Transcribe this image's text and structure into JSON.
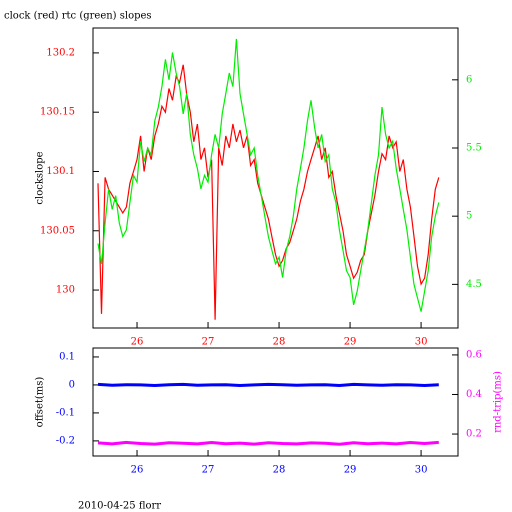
{
  "chart_data": [
    {
      "type": "line",
      "title": "clock (red) rtc (green) slopes",
      "ylabel": "clockslope",
      "x": [
        25.45,
        25.5,
        25.55,
        25.6,
        25.65,
        25.7,
        25.75,
        25.8,
        25.85,
        25.9,
        25.95,
        26,
        26.05,
        26.1,
        26.15,
        26.2,
        26.25,
        26.3,
        26.35,
        26.4,
        26.45,
        26.5,
        26.55,
        26.6,
        26.65,
        26.7,
        26.75,
        26.8,
        26.85,
        26.9,
        26.95,
        27,
        27.05,
        27.1,
        27.15,
        27.2,
        27.25,
        27.3,
        27.35,
        27.4,
        27.45,
        27.5,
        27.55,
        27.6,
        27.65,
        27.7,
        27.75,
        27.8,
        27.85,
        27.9,
        27.95,
        28,
        28.05,
        28.1,
        28.15,
        28.2,
        28.25,
        28.3,
        28.35,
        28.4,
        28.45,
        28.5,
        28.55,
        28.6,
        28.65,
        28.7,
        28.75,
        28.8,
        28.85,
        28.9,
        28.95,
        29,
        29.05,
        29.1,
        29.15,
        29.2,
        29.25,
        29.3,
        29.35,
        29.4,
        29.45,
        29.5,
        29.55,
        29.6,
        29.65,
        29.7,
        29.75,
        29.8,
        29.85,
        29.9,
        29.95,
        30,
        30.05,
        30.1,
        30.15,
        30.2,
        30.25
      ],
      "xlim": [
        25.38,
        30.52
      ],
      "xticks": [
        26,
        27,
        28,
        29,
        30
      ],
      "ylim": [
        129.968,
        130.221
      ],
      "yticks": [
        130,
        130.05,
        130.1,
        130.15,
        130.2
      ],
      "y2lim": [
        4.18,
        6.38
      ],
      "y2ticks": [
        4.5,
        5,
        5.5,
        6
      ],
      "series": [
        {
          "name": "clock",
          "color": "#ff0000",
          "axis": "y",
          "values": [
            130.09,
            129.98,
            130.095,
            130.085,
            130.08,
            130.075,
            130.07,
            130.065,
            130.07,
            130.09,
            130.1,
            130.11,
            130.13,
            130.1,
            130.12,
            130.11,
            130.13,
            130.14,
            130.155,
            130.15,
            130.17,
            130.16,
            130.18,
            130.175,
            130.19,
            130.165,
            130.15,
            130.125,
            130.14,
            130.11,
            130.12,
            130.095,
            130.11,
            129.975,
            130.12,
            130.105,
            130.13,
            130.12,
            130.14,
            130.125,
            130.135,
            130.12,
            130.13,
            130.105,
            130.11,
            130.09,
            130.08,
            130.07,
            130.06,
            130.045,
            130.03,
            130.02,
            130.025,
            130.035,
            130.04,
            130.05,
            130.06,
            130.075,
            130.085,
            130.1,
            130.11,
            130.12,
            130.13,
            130.11,
            130.12,
            130.095,
            130.1,
            130.08,
            130.065,
            130.05,
            130.03,
            130.02,
            130.01,
            130.015,
            130.025,
            130.03,
            130.05,
            130.065,
            130.08,
            130.1,
            130.115,
            130.11,
            130.13,
            130.12,
            130.125,
            130.1,
            130.11,
            130.085,
            130.07,
            130.045,
            130.02,
            130.005,
            130.01,
            130.03,
            130.06,
            130.085,
            130.095
          ]
        },
        {
          "name": "rtc",
          "color": "#00ee00",
          "axis": "y2",
          "values": [
            4.8,
            4.65,
            4.95,
            5.2,
            5.05,
            5.15,
            4.95,
            4.85,
            4.9,
            5.1,
            5.3,
            5.25,
            5.55,
            5.4,
            5.5,
            5.45,
            5.7,
            5.8,
            5.95,
            6.15,
            6,
            6.2,
            6.05,
            5.95,
            5.75,
            5.9,
            5.6,
            5.45,
            5.35,
            5.2,
            5.3,
            5.25,
            5.45,
            5.6,
            5.5,
            5.75,
            5.9,
            6.05,
            5.95,
            6.3,
            5.9,
            5.75,
            5.6,
            5.45,
            5.5,
            5.3,
            5.15,
            5,
            4.85,
            4.75,
            4.65,
            4.7,
            4.55,
            4.75,
            4.85,
            5,
            5.2,
            5.35,
            5.5,
            5.7,
            5.85,
            5.65,
            5.5,
            5.6,
            5.4,
            5.45,
            5.2,
            5.1,
            4.9,
            4.75,
            4.6,
            4.55,
            4.35,
            4.45,
            4.6,
            4.75,
            4.9,
            5.1,
            5.3,
            5.45,
            5.8,
            5.6,
            5.5,
            5.55,
            5.35,
            5.2,
            5.05,
            4.9,
            4.7,
            4.5,
            4.4,
            4.3,
            4.45,
            4.6,
            4.85,
            5,
            5.1
          ]
        }
      ]
    },
    {
      "type": "line",
      "ylabel": "offset(ms)",
      "y2label": "rnd-trip(ms)",
      "x": [
        25.45,
        25.65,
        25.85,
        26.05,
        26.25,
        26.45,
        26.65,
        26.85,
        27.05,
        27.25,
        27.45,
        27.65,
        27.85,
        28.05,
        28.25,
        28.45,
        28.65,
        28.85,
        29.05,
        29.25,
        29.45,
        29.65,
        29.85,
        30.05,
        30.25
      ],
      "xlim": [
        25.38,
        30.52
      ],
      "xticks": [
        26,
        27,
        28,
        29,
        30
      ],
      "ylim": [
        -0.254,
        0.132
      ],
      "yticks": [
        -0.2,
        -0.1,
        0,
        0.1
      ],
      "y2lim": [
        0.089,
        0.635
      ],
      "y2ticks": [
        0.2,
        0.4,
        0.6
      ],
      "series": [
        {
          "name": "offset",
          "color": "#0000ff",
          "axis": "y",
          "values": [
            0.002,
            -0.001,
            0.001,
            0,
            -0.002,
            0.001,
            0.002,
            -0.001,
            0,
            0.001,
            -0.002,
            0,
            0.002,
            0.001,
            -0.001,
            0,
            0.001,
            -0.002,
            0.002,
            0,
            -0.001,
            0.001,
            0,
            -0.002,
            0.001
          ]
        },
        {
          "name": "rnd-trip",
          "color": "#ff00ff",
          "axis": "y2",
          "values": [
            0.155,
            0.15,
            0.158,
            0.152,
            0.149,
            0.156,
            0.153,
            0.15,
            0.157,
            0.151,
            0.154,
            0.149,
            0.156,
            0.152,
            0.15,
            0.155,
            0.153,
            0.148,
            0.156,
            0.151,
            0.154,
            0.15,
            0.157,
            0.152,
            0.158
          ]
        }
      ]
    }
  ],
  "footer": "2010-04-25 florr"
}
